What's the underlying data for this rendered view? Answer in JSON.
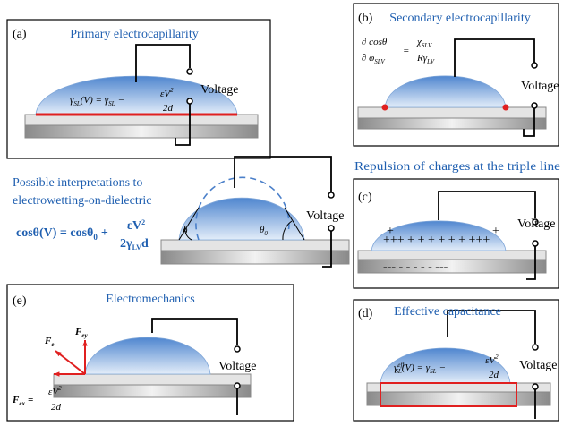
{
  "a": {
    "label": "(a)",
    "title": "Primary electrocapillarity",
    "voltage": "Voltage",
    "formula": {
      "gamma": "γ",
      "sub": "SL",
      "mid": "(V) = γ",
      "sub2": "SL",
      "minus": "−",
      "num": "εV",
      "sup": "2",
      "den": "2d"
    }
  },
  "b": {
    "label": "(b)",
    "title": "Secondary electrocapillarity",
    "voltage": "Voltage",
    "formula": {
      "num": "∂ cosθ",
      "den": "∂ φ",
      "den_sub": "SLV",
      "eq": "=",
      "rnum": "χ",
      "rnum_sub": "SLV",
      "rden": "Rγ",
      "rden_sub": "LV"
    }
  },
  "center": {
    "title_1": "Possible interpretations to",
    "title_2": "electrowetting-on-dielectric",
    "theta": "θ",
    "theta0": "θ",
    "theta0_sub": "0",
    "voltage": "Voltage",
    "formula": {
      "lhs": "cosθ(V) = cosθ",
      "lhs_sub": "0",
      "plus": "+",
      "num": "εV",
      "sup": "2",
      "den": "2γ",
      "den_sub": "LV",
      "den_end": "d"
    }
  },
  "c": {
    "heading": "Repulsion of charges at the triple line",
    "label": "(c)",
    "voltage": "Voltage",
    "plus_left": "+",
    "plus_row": "+++ +  +  +  +  +  +  +++",
    "plus_right": "+",
    "minus_row": "---  -   -   -   -   -  ---"
  },
  "d": {
    "label": "(d)",
    "title": "Effective capacitance",
    "voltage": "Voltage",
    "formula": {
      "gamma": "γ",
      "sup": "eff",
      "sub": "SL",
      "mid": "(V) = γ",
      "sub2": "SL",
      "minus": "−",
      "num": "εV",
      "num_sup": "2",
      "den": "2d"
    }
  },
  "e": {
    "label": "(e)",
    "title": "Electromechanics",
    "voltage": "Voltage",
    "fe": "F",
    "fe_sub": "e",
    "fey": "F",
    "fey_sub": "ey",
    "fex": "F",
    "fex_sub": "ex",
    "eq": "=",
    "num": "εV",
    "num_sup": "2",
    "den": "2d"
  }
}
